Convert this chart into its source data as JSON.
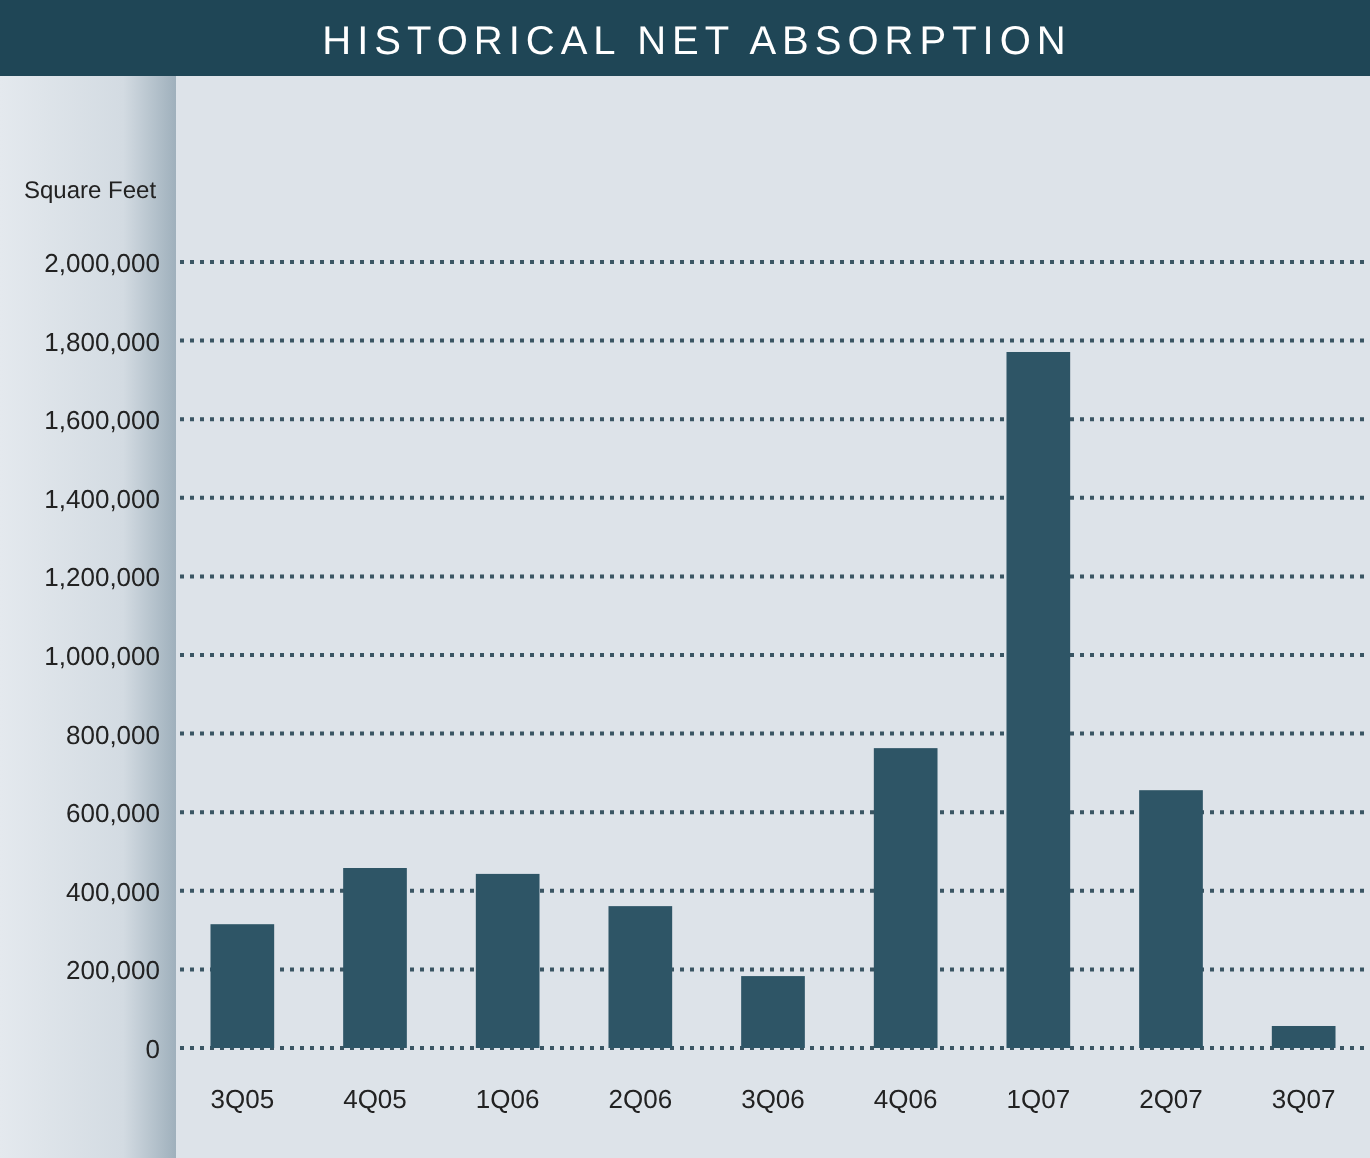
{
  "chart_data": {
    "type": "bar",
    "title": "HISTORICAL NET ABSORPTION",
    "ylabel": "Square Feet",
    "categories": [
      "3Q05",
      "4Q05",
      "1Q06",
      "2Q06",
      "3Q06",
      "4Q06",
      "1Q07",
      "2Q07",
      "3Q07"
    ],
    "values": [
      315000,
      458000,
      443000,
      361000,
      183000,
      763000,
      1771000,
      656000,
      56000
    ],
    "color": "#2e5566",
    "ylim": [
      0,
      2000000
    ],
    "yticks": [
      {
        "value": 0,
        "label": "0"
      },
      {
        "value": 200000,
        "label": "200,000"
      },
      {
        "value": 400000,
        "label": "400,000"
      },
      {
        "value": 600000,
        "label": "600,000"
      },
      {
        "value": 800000,
        "label": "800,000"
      },
      {
        "value": 1000000,
        "label": "1,000,000"
      },
      {
        "value": 1200000,
        "label": "1,200,000"
      },
      {
        "value": 1400000,
        "label": "1,400,000"
      },
      {
        "value": 1600000,
        "label": "1,600,000"
      },
      {
        "value": 1800000,
        "label": "1,800,000"
      },
      {
        "value": 2000000,
        "label": "2,000,000"
      }
    ],
    "grid": "y"
  }
}
